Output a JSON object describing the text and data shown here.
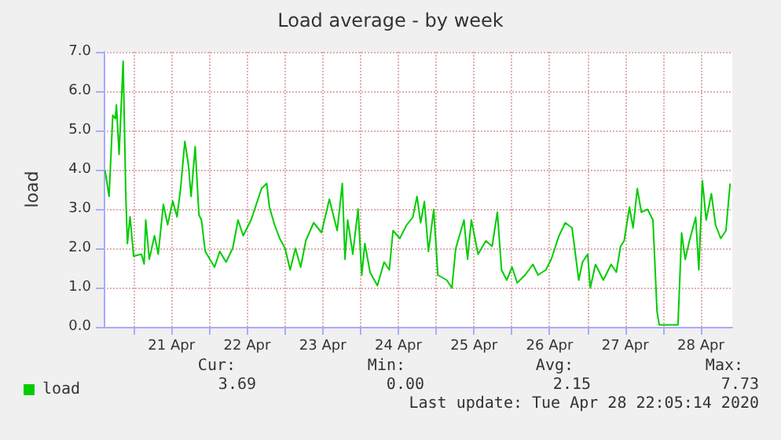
{
  "chart_data": {
    "type": "line",
    "title": "Load average - by week",
    "ylabel": "load",
    "xlim": [
      "2020-04-20T14:30",
      "2020-04-28T22:00"
    ],
    "xticks": [
      {
        "value": "2020-04-21T00:00",
        "label": null
      },
      {
        "value": "2020-04-21T12:00",
        "label": "21 Apr"
      },
      {
        "value": "2020-04-22T00:00",
        "label": null
      },
      {
        "value": "2020-04-22T12:00",
        "label": "22 Apr"
      },
      {
        "value": "2020-04-23T00:00",
        "label": null
      },
      {
        "value": "2020-04-23T12:00",
        "label": "23 Apr"
      },
      {
        "value": "2020-04-24T00:00",
        "label": null
      },
      {
        "value": "2020-04-24T12:00",
        "label": "24 Apr"
      },
      {
        "value": "2020-04-25T00:00",
        "label": null
      },
      {
        "value": "2020-04-25T12:00",
        "label": "25 Apr"
      },
      {
        "value": "2020-04-26T00:00",
        "label": null
      },
      {
        "value": "2020-04-26T12:00",
        "label": "26 Apr"
      },
      {
        "value": "2020-04-27T00:00",
        "label": null
      },
      {
        "value": "2020-04-27T12:00",
        "label": "27 Apr"
      },
      {
        "value": "2020-04-28T00:00",
        "label": null
      },
      {
        "value": "2020-04-28T12:00",
        "label": "28 Apr"
      }
    ],
    "ylim": [
      0,
      7
    ],
    "yticks": [
      {
        "value": 0,
        "label": "0.0"
      },
      {
        "value": 1,
        "label": "1.0"
      },
      {
        "value": 2,
        "label": "2.0"
      },
      {
        "value": 3,
        "label": "3.0"
      },
      {
        "value": 4,
        "label": "4.0"
      },
      {
        "value": 5,
        "label": "5.0"
      },
      {
        "value": 6,
        "label": "6.0"
      },
      {
        "value": 7,
        "label": "7.0"
      }
    ],
    "grid": true,
    "legend": "bottom left",
    "marker": "none",
    "line_style": "solid",
    "x": [
      "2020-04-20T14:55",
      "2020-04-20T16:12",
      "2020-04-20T17:23",
      "2020-04-20T18:11",
      "2020-04-20T18:32",
      "2020-04-20T19:23",
      "2020-04-20T20:40",
      "2020-04-20T21:31",
      "2020-04-20T22:01",
      "2020-04-20T22:52",
      "2020-04-21T00:00",
      "2020-04-21T02:29",
      "2020-04-21T03:20",
      "2020-04-21T03:50",
      "2020-04-21T04:58",
      "2020-04-21T06:37",
      "2020-04-21T07:48",
      "2020-04-21T09:26",
      "2020-04-21T10:47",
      "2020-04-21T12:25",
      "2020-04-21T13:46",
      "2020-04-21T14:54",
      "2020-04-21T16:15",
      "2020-04-21T17:23",
      "2020-04-21T18:14",
      "2020-04-21T19:32",
      "2020-04-21T20:43",
      "2020-04-21T21:31",
      "2020-04-21T22:43",
      "2020-04-22T01:41",
      "2020-04-22T03:20",
      "2020-04-22T05:19",
      "2020-04-22T07:27",
      "2020-04-22T09:08",
      "2020-04-22T10:47",
      "2020-04-22T13:16",
      "2020-04-22T16:36",
      "2020-04-22T18:14",
      "2020-04-22T19:05",
      "2020-04-22T20:43",
      "2020-04-22T22:22",
      "2020-04-23T00:03",
      "2020-04-23T01:41",
      "2020-04-23T03:20",
      "2020-04-23T05:01",
      "2020-04-23T06:40",
      "2020-04-23T09:08",
      "2020-04-23T11:38",
      "2020-04-23T14:07",
      "2020-04-23T16:36",
      "2020-04-23T18:14",
      "2020-04-23T19:05",
      "2020-04-23T19:56",
      "2020-04-23T21:34",
      "2020-04-23T23:13",
      "2020-04-24T00:24",
      "2020-04-24T01:23",
      "2020-04-24T03:02",
      "2020-04-24T05:22",
      "2020-04-24T07:30",
      "2020-04-24T09:08",
      "2020-04-24T10:20",
      "2020-04-24T12:28",
      "2020-04-24T14:37",
      "2020-04-24T16:36",
      "2020-04-24T17:56",
      "2020-04-24T19:05",
      "2020-04-24T20:17",
      "2020-04-24T21:34",
      "2020-04-24T23:15",
      "2020-04-25T00:33",
      "2020-04-25T03:23",
      "2020-04-25T05:01",
      "2020-04-25T06:13",
      "2020-04-25T08:51",
      "2020-04-25T09:59",
      "2020-04-25T11:11",
      "2020-04-25T13:19",
      "2020-04-25T15:48",
      "2020-04-25T17:47",
      "2020-04-25T19:26",
      "2020-04-25T20:46",
      "2020-04-25T22:25",
      "2020-04-26T00:06",
      "2020-04-26T01:44",
      "2020-04-26T04:14",
      "2020-04-26T06:43",
      "2020-04-26T08:21",
      "2020-04-26T10:50",
      "2020-04-26T12:32",
      "2020-04-26T15:01",
      "2020-04-26T16:59",
      "2020-04-26T19:08",
      "2020-04-26T21:16",
      "2020-04-26T22:28",
      "2020-04-27T00:06",
      "2020-04-27T00:56",
      "2020-04-27T02:35",
      "2020-04-27T05:04",
      "2020-04-27T07:33",
      "2020-04-27T09:12",
      "2020-04-27T10:32",
      "2020-04-27T11:41",
      "2020-04-27T13:22",
      "2020-04-27T14:31",
      "2020-04-27T15:51",
      "2020-04-27T17:08",
      "2020-04-27T19:08",
      "2020-04-27T20:49",
      "2020-04-27T22:07",
      "2020-04-27T22:49",
      "2020-04-28T01:47",
      "2020-04-28T04:46",
      "2020-04-28T05:55",
      "2020-04-28T07:04",
      "2020-04-28T08:24",
      "2020-04-28T10:23",
      "2020-04-28T11:23",
      "2020-04-28T12:31",
      "2020-04-28T13:43",
      "2020-04-28T15:22",
      "2020-04-28T16:42",
      "2020-04-28T18:20",
      "2020-04-28T19:59",
      "2020-04-28T21:19"
    ],
    "series": [
      {
        "name": "load",
        "color": "#00cc00",
        "values": [
          3.99,
          3.32,
          5.39,
          5.3,
          5.65,
          4.39,
          6.76,
          3.32,
          2.12,
          2.8,
          1.8,
          1.85,
          1.6,
          2.72,
          1.72,
          2.32,
          1.85,
          3.12,
          2.6,
          3.2,
          2.8,
          3.52,
          4.72,
          4.12,
          3.32,
          4.59,
          2.85,
          2.72,
          1.92,
          1.52,
          1.92,
          1.65,
          2.0,
          2.72,
          2.32,
          2.72,
          3.52,
          3.65,
          3.05,
          2.6,
          2.25,
          2.0,
          1.45,
          2.0,
          1.52,
          2.2,
          2.65,
          2.4,
          3.25,
          2.45,
          3.65,
          1.72,
          2.72,
          1.85,
          3.0,
          1.32,
          2.12,
          1.39,
          1.05,
          1.65,
          1.45,
          2.45,
          2.25,
          2.59,
          2.79,
          3.32,
          2.65,
          3.19,
          1.92,
          2.99,
          1.32,
          1.19,
          0.99,
          1.99,
          2.72,
          1.72,
          2.72,
          1.85,
          2.19,
          2.05,
          2.92,
          1.45,
          1.19,
          1.52,
          1.12,
          1.32,
          1.59,
          1.32,
          1.45,
          1.72,
          2.32,
          2.65,
          2.52,
          1.19,
          1.65,
          1.85,
          0.99,
          1.59,
          1.19,
          1.59,
          1.39,
          2.05,
          2.19,
          3.05,
          2.52,
          3.52,
          2.92,
          2.99,
          2.72,
          0.39,
          0.05,
          0.05,
          0.05,
          2.39,
          1.72,
          2.19,
          2.79,
          1.45,
          3.72,
          2.72,
          3.39,
          2.59,
          2.25,
          2.45,
          3.65
        ]
      }
    ],
    "annotations": [
      "Cur:",
      "Min:",
      "Avg:",
      "Max:",
      "3.69",
      "0.00",
      "2.15",
      "7.73",
      "Last update: Tue Apr 28 22:05:14 2020"
    ]
  }
}
